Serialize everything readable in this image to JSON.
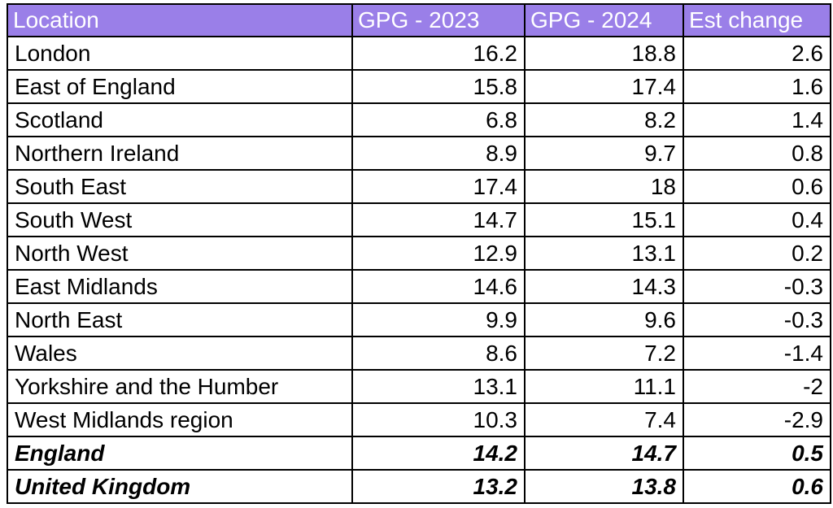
{
  "header": {
    "location": "Location",
    "gpg_2023": "GPG - 2023",
    "gpg_2024": "GPG - 2024",
    "est_change": "Est change",
    "fill_color": "#9a7fe8",
    "text_color": "#ffffff"
  },
  "rows": [
    {
      "location": "London",
      "gpg_2023": "16.2",
      "gpg_2024": "18.8",
      "est_change": "2.6"
    },
    {
      "location": "East of England",
      "gpg_2023": "15.8",
      "gpg_2024": "17.4",
      "est_change": "1.6"
    },
    {
      "location": "Scotland",
      "gpg_2023": "6.8",
      "gpg_2024": "8.2",
      "est_change": "1.4"
    },
    {
      "location": "Northern Ireland",
      "gpg_2023": "8.9",
      "gpg_2024": "9.7",
      "est_change": "0.8"
    },
    {
      "location": "South East",
      "gpg_2023": "17.4",
      "gpg_2024": "18",
      "est_change": "0.6"
    },
    {
      "location": "South West",
      "gpg_2023": "14.7",
      "gpg_2024": "15.1",
      "est_change": "0.4"
    },
    {
      "location": "North West",
      "gpg_2023": "12.9",
      "gpg_2024": "13.1",
      "est_change": "0.2"
    },
    {
      "location": "East Midlands",
      "gpg_2023": "14.6",
      "gpg_2024": "14.3",
      "est_change": "-0.3"
    },
    {
      "location": "North East",
      "gpg_2023": "9.9",
      "gpg_2024": "9.6",
      "est_change": "-0.3"
    },
    {
      "location": "Wales",
      "gpg_2023": "8.6",
      "gpg_2024": "7.2",
      "est_change": "-1.4"
    },
    {
      "location": "Yorkshire and the Humber",
      "gpg_2023": "13.1",
      "gpg_2024": "11.1",
      "est_change": "-2"
    },
    {
      "location": "West Midlands region",
      "gpg_2023": "10.3",
      "gpg_2024": "7.4",
      "est_change": "-2.9"
    }
  ],
  "totals": [
    {
      "location": "England",
      "gpg_2023": "14.2",
      "gpg_2024": "14.7",
      "est_change": "0.5"
    },
    {
      "location": "United Kingdom",
      "gpg_2023": "13.2",
      "gpg_2024": "13.8",
      "est_change": "0.6"
    }
  ]
}
